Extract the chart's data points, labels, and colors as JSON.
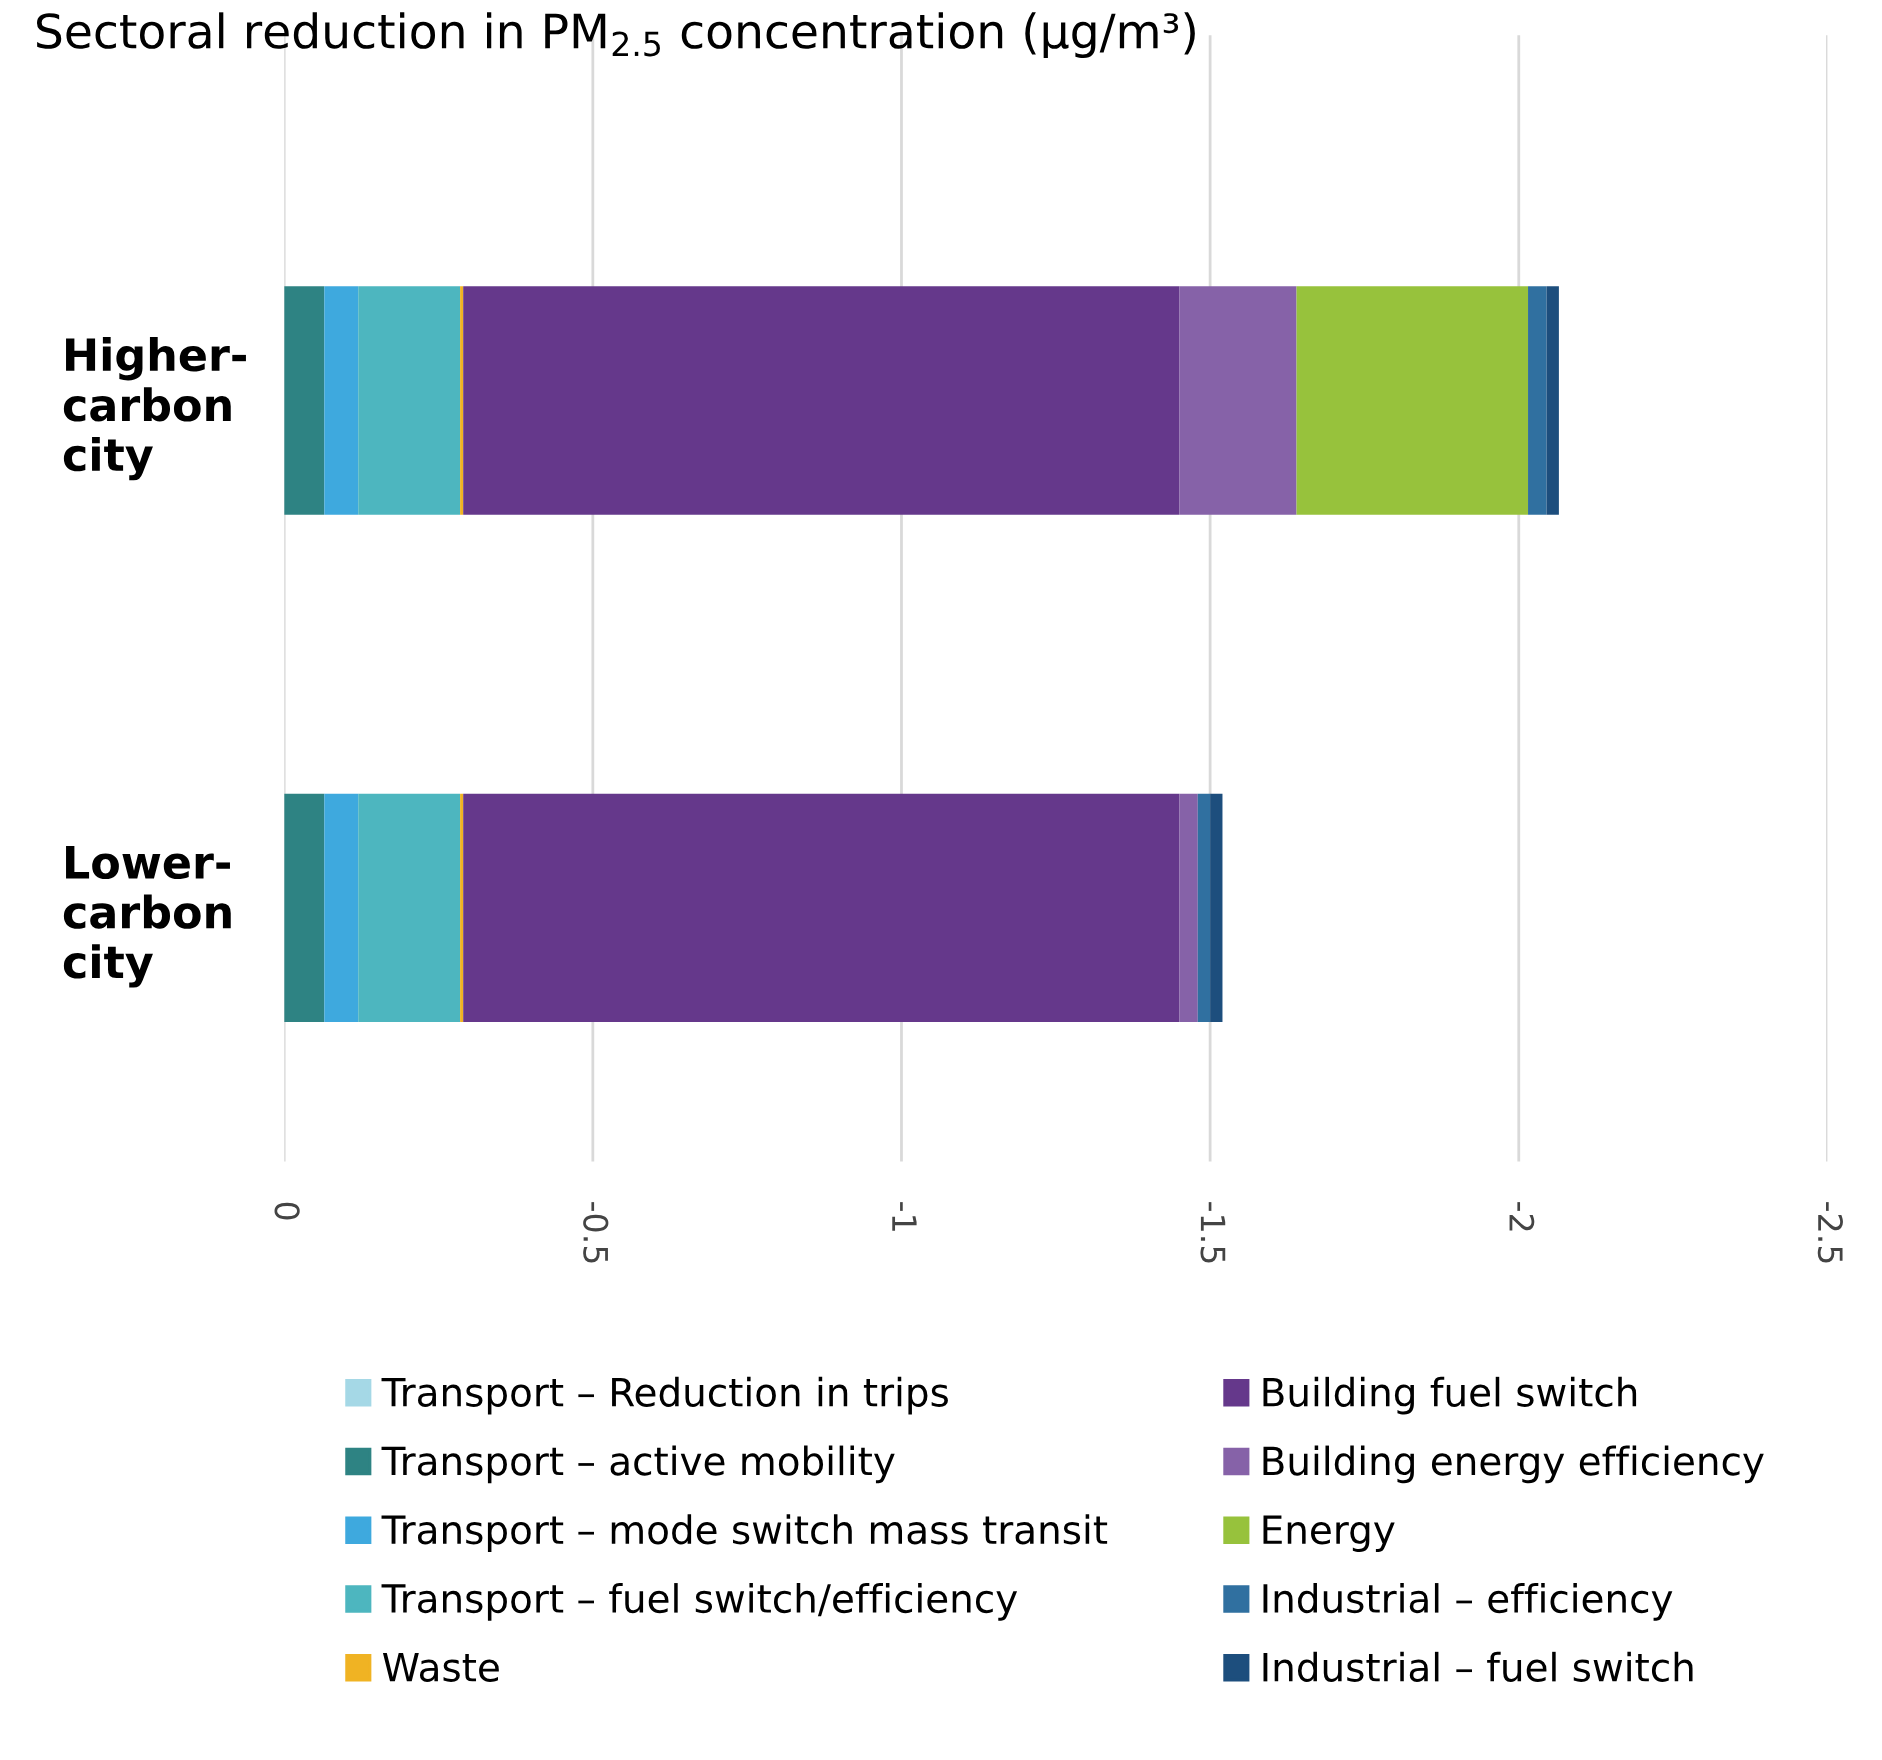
{
  "chart_data": {
    "type": "bar",
    "orientation": "horizontal",
    "stacked": true,
    "title": "Sectoral reduction in PM$_{2.5}$ concentration (μg/m³)",
    "categories": [
      "Higher-\ncarbon\ncity",
      "Lower-\ncarbon\ncity"
    ],
    "series": [
      {
        "name": "Transport – Reduction in trips",
        "color": "#a5d8e6",
        "values": [
          0,
          0
        ]
      },
      {
        "name": "Transport – active mobility",
        "color": "#2e8383",
        "values": [
          -0.065,
          -0.065
        ]
      },
      {
        "name": "Transport – mode switch mass transit",
        "color": "#3ea9de",
        "values": [
          -0.055,
          -0.055
        ]
      },
      {
        "name": "Transport – fuel switch/efficiency",
        "color": "#4db6bf",
        "values": [
          -0.165,
          -0.165
        ]
      },
      {
        "name": "Waste",
        "color": "#f0b323",
        "values": [
          -0.005,
          -0.005
        ]
      },
      {
        "name": "Building fuel switch",
        "color": "#65388b",
        "values": [
          -1.16,
          -1.16
        ]
      },
      {
        "name": "Building energy efficiency",
        "color": "#8662a8",
        "values": [
          -0.19,
          -0.03
        ]
      },
      {
        "name": "Energy",
        "color": "#97c23c",
        "values": [
          -0.375,
          0
        ]
      },
      {
        "name": "Industrial – efficiency",
        "color": "#3070a0",
        "values": [
          -0.03,
          -0.02
        ]
      },
      {
        "name": "Industrial – fuel switch",
        "color": "#1d4e7d",
        "values": [
          -0.02,
          -0.02
        ]
      }
    ],
    "xlim": [
      0,
      -2.5
    ],
    "xticks": [
      0,
      -0.5,
      -1,
      -1.5,
      -2,
      -2.5
    ],
    "grid": "x",
    "legend": "bottom"
  }
}
